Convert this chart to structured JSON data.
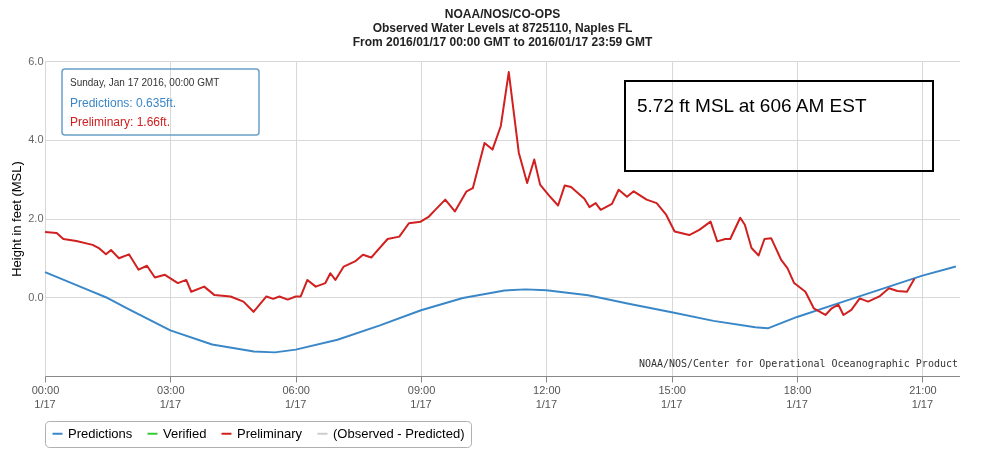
{
  "chart_data": {
    "type": "line",
    "title": "NOAA/NOS/CO-OPS\nObserved Water Levels at 8725110, Naples FL\nFrom 2016/01/17 00:00 GMT to 2016/01/17 23:59 GMT",
    "ylabel": "Height in feet (MSL)",
    "xlim": [
      0,
      21.9
    ],
    "xticks": [
      {
        "value": 0,
        "label": "00:00"
      },
      {
        "value": 3,
        "label": "03:00"
      },
      {
        "value": 6,
        "label": "06:00"
      },
      {
        "value": 9,
        "label": "09:00"
      },
      {
        "value": 12,
        "label": "12:00"
      },
      {
        "value": 15,
        "label": "15:00"
      },
      {
        "value": 18,
        "label": "18:00"
      },
      {
        "value": 21,
        "label": "21:00"
      }
    ],
    "ylim": [
      -2,
      6
    ],
    "yticks": [
      {
        "value": 0,
        "label": "0.0"
      },
      {
        "value": 2,
        "label": "2.0"
      },
      {
        "value": 4,
        "label": "4.0"
      },
      {
        "value": 6,
        "label": "6.0"
      }
    ],
    "grid": true,
    "legend": "bottom",
    "line_style": "solid",
    "marker": "none",
    "series": [
      {
        "name": "Predictions",
        "color": "#3a87c8",
        "x": [
          0,
          1,
          1.5,
          2,
          3,
          4,
          5,
          5.5,
          6,
          7,
          8,
          9,
          10,
          11,
          11.5,
          12,
          13,
          14,
          15,
          16,
          17,
          17.3,
          18,
          19,
          20,
          21,
          21.8
        ],
        "values": [
          0.64,
          0.2,
          -0.02,
          -0.3,
          -0.84,
          -1.2,
          -1.38,
          -1.4,
          -1.33,
          -1.08,
          -0.72,
          -0.33,
          -0.02,
          0.17,
          0.2,
          0.18,
          0.05,
          -0.17,
          -0.38,
          -0.6,
          -0.76,
          -0.79,
          -0.5,
          -0.15,
          0.2,
          0.55,
          0.78
        ]
      },
      {
        "name": "Verified",
        "color": "#33cc33"
      },
      {
        "name": "Preliminary",
        "color": "#d0201f",
        "x": [
          0,
          0.28,
          0.44,
          0.75,
          1.14,
          1.3,
          1.46,
          1.58,
          1.77,
          2.01,
          2.24,
          2.44,
          2.63,
          2.87,
          3.18,
          3.38,
          3.5,
          3.81,
          4.05,
          4.44,
          4.75,
          4.99,
          5.3,
          5.46,
          5.61,
          5.81,
          6.0,
          6.12,
          6.28,
          6.48,
          6.71,
          6.83,
          6.95,
          7.15,
          7.42,
          7.61,
          7.81,
          8.2,
          8.48,
          8.71,
          8.99,
          9.19,
          9.34,
          9.58,
          9.81,
          10.09,
          10.24,
          10.52,
          10.71,
          10.91,
          11.1,
          11.34,
          11.54,
          11.71,
          11.85,
          12.05,
          12.28,
          12.44,
          12.59,
          12.91,
          13.03,
          13.18,
          13.3,
          13.57,
          13.73,
          13.93,
          14.09,
          14.4,
          14.64,
          14.87,
          15.07,
          15.42,
          15.66,
          15.93,
          16.09,
          16.28,
          16.4,
          16.64,
          16.75,
          16.91,
          17.08,
          17.22,
          17.38,
          17.62,
          17.77,
          17.93,
          18.2,
          18.4,
          18.68,
          18.83,
          18.99,
          19.11,
          19.3,
          19.5,
          19.7,
          19.97,
          20.2,
          20.4,
          20.63,
          20.81
        ],
        "values": [
          1.66,
          1.63,
          1.48,
          1.43,
          1.33,
          1.24,
          1.09,
          1.2,
          0.99,
          1.09,
          0.7,
          0.8,
          0.5,
          0.57,
          0.36,
          0.44,
          0.14,
          0.27,
          0.06,
          0.02,
          -0.11,
          -0.37,
          0.02,
          -0.04,
          0.02,
          -0.06,
          0.02,
          0.02,
          0.44,
          0.27,
          0.36,
          0.61,
          0.44,
          0.78,
          0.91,
          1.08,
          1.01,
          1.48,
          1.54,
          1.88,
          1.92,
          2.05,
          2.22,
          2.48,
          2.18,
          2.69,
          2.77,
          3.92,
          3.75,
          4.35,
          5.72,
          3.67,
          2.9,
          3.5,
          2.86,
          2.6,
          2.33,
          2.84,
          2.8,
          2.5,
          2.29,
          2.39,
          2.22,
          2.37,
          2.73,
          2.55,
          2.69,
          2.48,
          2.39,
          2.09,
          1.67,
          1.58,
          1.71,
          1.92,
          1.42,
          1.48,
          1.48,
          2.02,
          1.84,
          1.25,
          1.06,
          1.48,
          1.5,
          0.95,
          0.74,
          0.36,
          0.14,
          -0.28,
          -0.45,
          -0.28,
          -0.19,
          -0.45,
          -0.32,
          -0.03,
          -0.11,
          0.02,
          0.23,
          0.16,
          0.14,
          0.47
        ]
      },
      {
        "name": "(Observed - Predicted)",
        "color": "#cccccc"
      }
    ],
    "annotations": [
      "Sunday, Jan 17 2016, 00:00 GMT",
      "Predictions: 0.635ft.",
      "Preliminary: 1.66ft.",
      "5.72 ft MSL at 606 AM EST",
      "NOAA/NOS/Center for Operational Oceanographic Product",
      "1/17",
      "1/17",
      "1/17",
      "1/17",
      "1/17",
      "1/17",
      "1/17",
      "1/17"
    ]
  }
}
